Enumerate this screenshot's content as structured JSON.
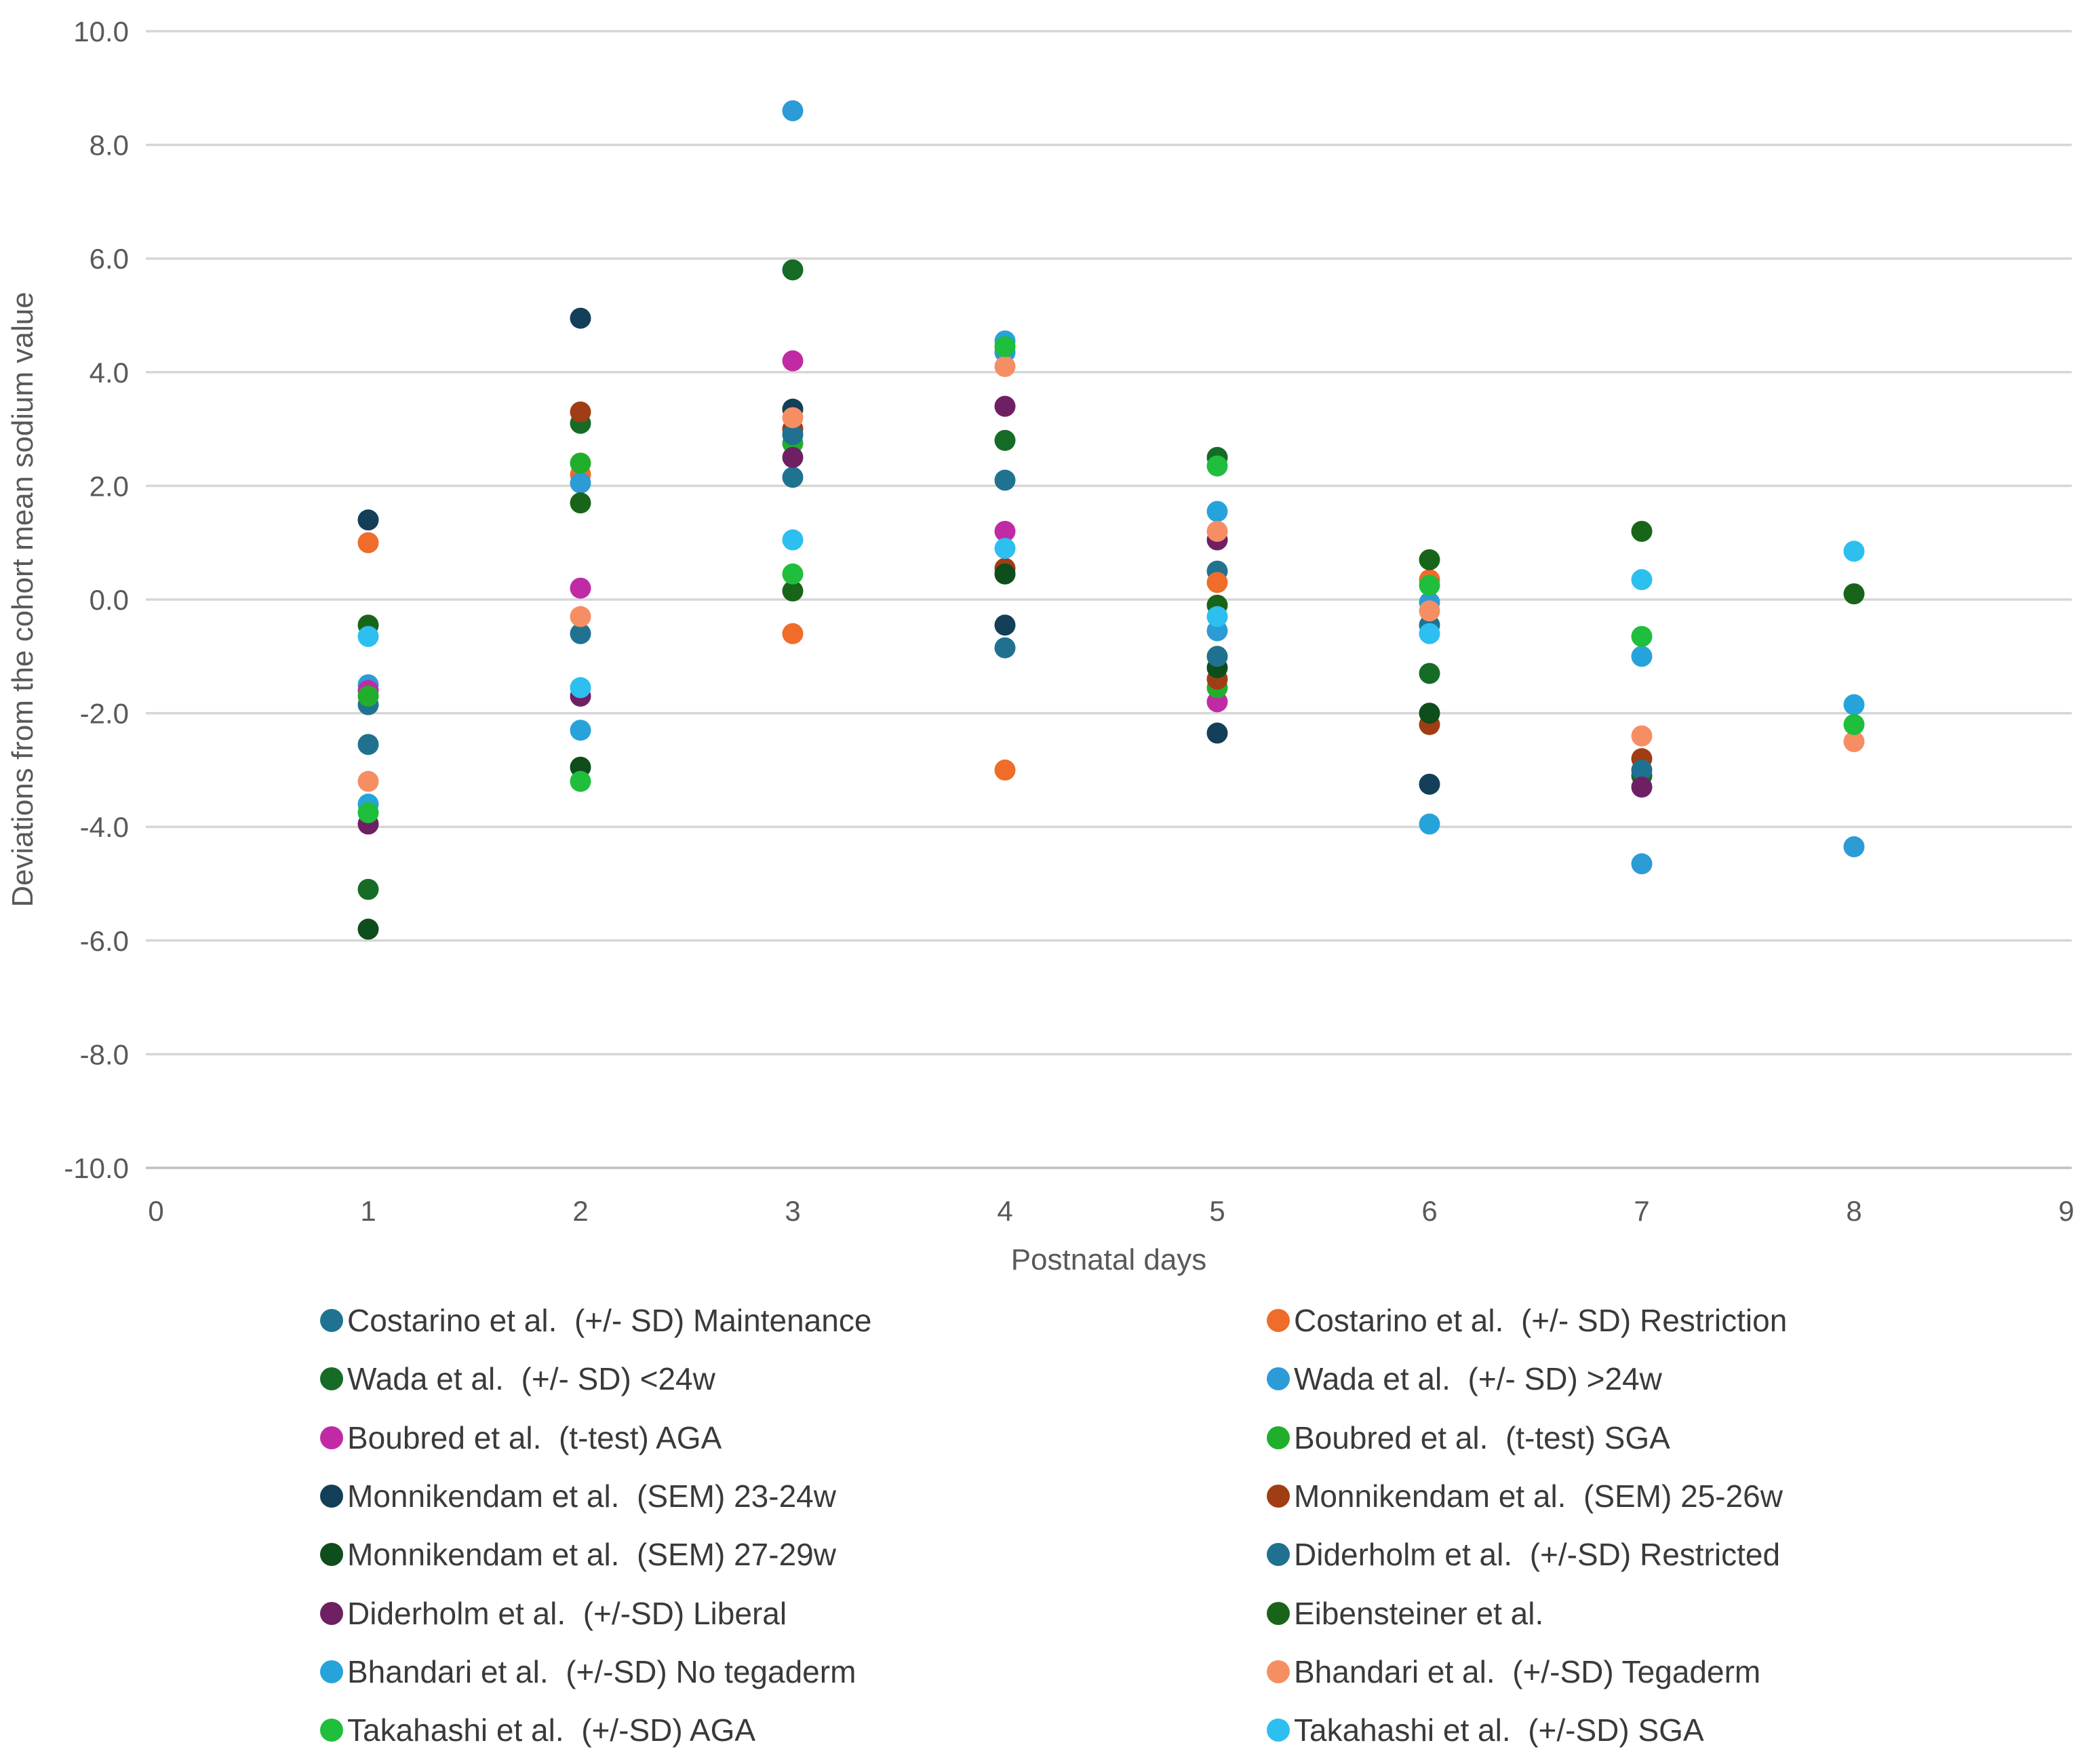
{
  "chart_data": {
    "type": "scatter",
    "title": "",
    "xlabel": "Postnatal days",
    "ylabel": "Deviations from the cohort mean sodium value",
    "xlim": [
      0,
      9
    ],
    "ylim": [
      -10,
      10
    ],
    "x_ticks": [
      0,
      1,
      2,
      3,
      4,
      5,
      6,
      7,
      8,
      9
    ],
    "y_ticks": [
      10.0,
      8.0,
      6.0,
      4.0,
      2.0,
      0.0,
      -2.0,
      -4.0,
      -6.0,
      -8.0,
      -10.0
    ],
    "grid": "horizontal",
    "gridline_color": "#D6D6D6",
    "baseline_color": "#BFBFBF",
    "tick_text_color": "#595959",
    "legend_position": "bottom-two-columns",
    "series": [
      {
        "name": "Costarino et al.  (+/- SD) Maintenance",
        "color": "#1F7391",
        "points": [
          [
            1,
            -1.85
          ],
          [
            2,
            -0.6
          ],
          [
            3,
            2.15
          ],
          [
            4,
            2.1
          ],
          [
            5,
            0.5
          ]
        ]
      },
      {
        "name": "Costarino et al.  (+/- SD) Restriction",
        "color": "#EF6C2A",
        "points": [
          [
            1,
            1.0
          ],
          [
            2,
            2.2
          ],
          [
            3,
            -0.6
          ],
          [
            4,
            -3.0
          ],
          [
            5,
            0.3
          ],
          [
            6,
            0.35
          ]
        ]
      },
      {
        "name": "Wada et al.  (+/- SD) <24w",
        "color": "#166B27",
        "points": [
          [
            1,
            -5.1
          ],
          [
            2,
            3.1
          ],
          [
            3,
            5.8
          ],
          [
            4,
            2.8
          ],
          [
            5,
            2.5
          ],
          [
            6,
            -1.3
          ],
          [
            7,
            -3.1
          ]
        ]
      },
      {
        "name": "Wada et al.  (+/- SD) >24w",
        "color": "#2C9BD6",
        "points": [
          [
            1,
            -1.5
          ],
          [
            2,
            2.05
          ],
          [
            3,
            8.6
          ],
          [
            4,
            4.35
          ],
          [
            5,
            -0.55
          ],
          [
            6,
            -0.05
          ],
          [
            7,
            -4.65
          ],
          [
            8,
            -4.35
          ]
        ]
      },
      {
        "name": "Boubred et al.  (t-test) AGA",
        "color": "#C02BA5",
        "points": [
          [
            1,
            -1.6
          ],
          [
            2,
            0.2
          ],
          [
            3,
            4.2
          ],
          [
            4,
            1.2
          ],
          [
            5,
            -1.8
          ]
        ]
      },
      {
        "name": "Boubred et al.  (t-test) SGA",
        "color": "#21AE2C",
        "points": [
          [
            1,
            -1.7
          ],
          [
            2,
            2.4
          ],
          [
            3,
            2.75
          ],
          [
            5,
            -1.55
          ]
        ]
      },
      {
        "name": "Monnikendam et al.  (SEM) 23-24w",
        "color": "#133F58",
        "points": [
          [
            1,
            1.4
          ],
          [
            2,
            4.95
          ],
          [
            3,
            3.35
          ],
          [
            4,
            -0.45
          ],
          [
            5,
            -2.35
          ],
          [
            6,
            -3.25
          ]
        ]
      },
      {
        "name": "Monnikendam et al.  (SEM) 25-26w",
        "color": "#A03D15",
        "points": [
          [
            2,
            3.3
          ],
          [
            3,
            3.0
          ],
          [
            4,
            0.55
          ],
          [
            5,
            -1.4
          ],
          [
            6,
            -2.2
          ],
          [
            7,
            -2.8
          ]
        ]
      },
      {
        "name": "Monnikendam et al.  (SEM) 27-29w",
        "color": "#0E4D1C",
        "points": [
          [
            1,
            -5.8
          ],
          [
            2,
            -2.95
          ],
          [
            4,
            0.45
          ],
          [
            5,
            -1.2
          ],
          [
            6,
            -2.0
          ]
        ]
      },
      {
        "name": "Diderholm et al.  (+/-SD) Restricted",
        "color": "#20718F",
        "points": [
          [
            1,
            -2.55
          ],
          [
            3,
            2.9
          ],
          [
            4,
            -0.85
          ],
          [
            5,
            -1.0
          ],
          [
            6,
            -0.45
          ],
          [
            7,
            -3.0
          ]
        ]
      },
      {
        "name": "Diderholm et al.  (+/-SD) Liberal",
        "color": "#6E2063",
        "points": [
          [
            1,
            -3.95
          ],
          [
            2,
            -1.7
          ],
          [
            3,
            2.5
          ],
          [
            4,
            3.4
          ],
          [
            5,
            1.05
          ],
          [
            7,
            -3.3
          ]
        ]
      },
      {
        "name": "Eibensteiner et al.",
        "color": "#186519",
        "points": [
          [
            1,
            -0.45
          ],
          [
            2,
            1.7
          ],
          [
            3,
            0.15
          ],
          [
            5,
            -0.1
          ],
          [
            6,
            0.7
          ],
          [
            7,
            1.2
          ],
          [
            8,
            0.1
          ]
        ]
      },
      {
        "name": "Bhandari et al.  (+/-SD) No tegaderm",
        "color": "#27A3DC",
        "points": [
          [
            1,
            -3.6
          ],
          [
            2,
            -2.3
          ],
          [
            4,
            4.55
          ],
          [
            5,
            1.55
          ],
          [
            6,
            -3.95
          ],
          [
            7,
            -1.0
          ],
          [
            8,
            -1.85
          ]
        ]
      },
      {
        "name": "Bhandari et al.  (+/-SD) Tegaderm",
        "color": "#F68E63",
        "points": [
          [
            1,
            -3.2
          ],
          [
            2,
            -0.3
          ],
          [
            3,
            3.2
          ],
          [
            4,
            4.1
          ],
          [
            5,
            1.2
          ],
          [
            6,
            -0.2
          ],
          [
            7,
            -2.4
          ],
          [
            8,
            -2.5
          ]
        ]
      },
      {
        "name": "Takahashi et al.  (+/-SD) AGA",
        "color": "#1FBE3C",
        "points": [
          [
            1,
            -3.75
          ],
          [
            2,
            -3.2
          ],
          [
            3,
            0.45
          ],
          [
            4,
            4.45
          ],
          [
            5,
            2.35
          ],
          [
            6,
            0.25
          ],
          [
            7,
            -0.65
          ],
          [
            8,
            -2.2
          ]
        ]
      },
      {
        "name": "Takahashi et al.  (+/-SD) SGA",
        "color": "#2CBFF0",
        "points": [
          [
            1,
            -0.65
          ],
          [
            2,
            -1.55
          ],
          [
            3,
            1.05
          ],
          [
            4,
            0.9
          ],
          [
            5,
            -0.3
          ],
          [
            6,
            -0.6
          ],
          [
            7,
            0.35
          ],
          [
            8,
            0.85
          ]
        ]
      }
    ]
  },
  "axes": {
    "x_title": "Postnatal days",
    "y_title": "Deviations from the cohort mean sodium value"
  }
}
